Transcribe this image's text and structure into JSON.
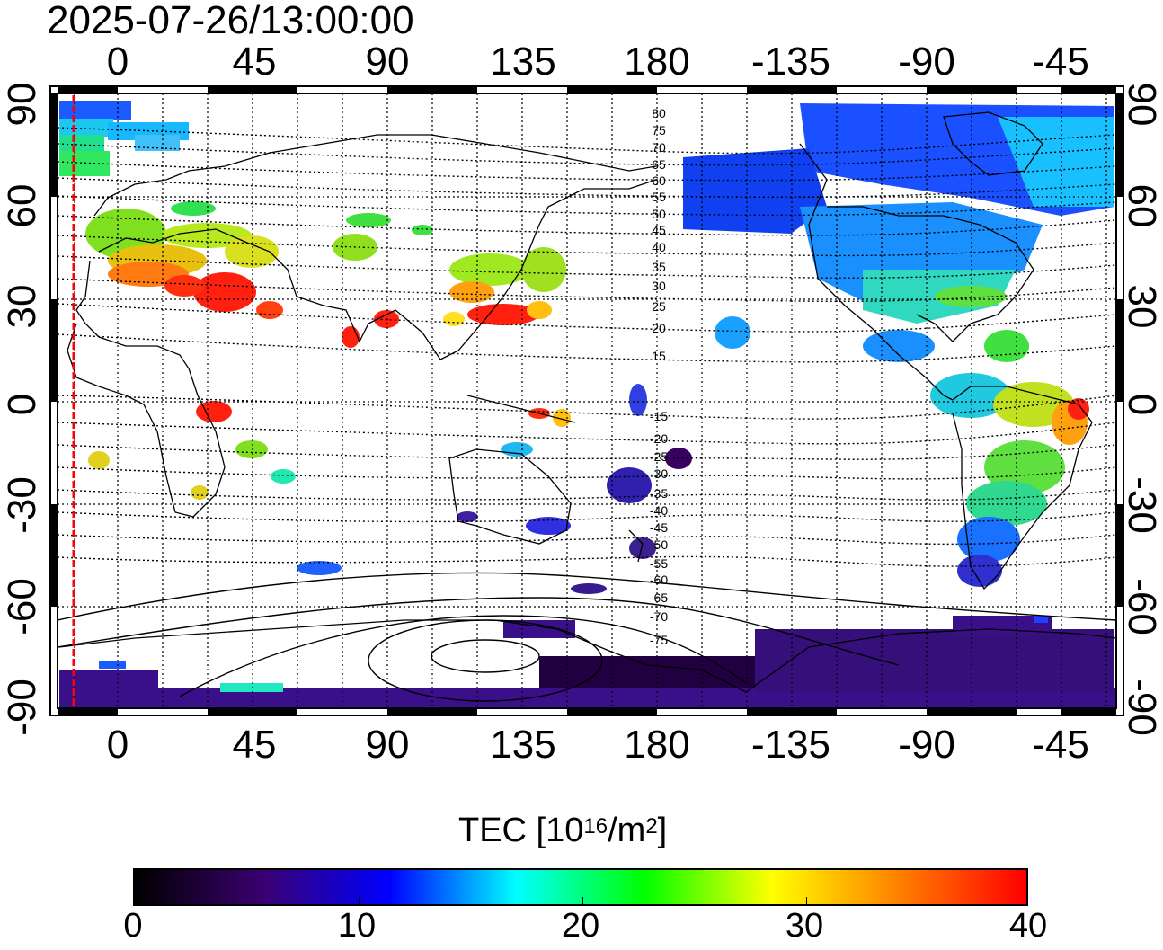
{
  "timestamp": "2025-07-26/13:00:00",
  "map": {
    "lon_ticks_top": [
      "0",
      "45",
      "90",
      "135",
      "180",
      "-135",
      "-90",
      "-45"
    ],
    "lon_ticks_bottom": [
      "0",
      "45",
      "90",
      "135",
      "180",
      "-135",
      "-90",
      "-45"
    ],
    "lat_ticks_left": [
      "90",
      "60",
      "30",
      "0",
      "-30",
      "-60",
      "-90"
    ],
    "lat_ticks_right": [
      "90",
      "60",
      "30",
      "0",
      "-30",
      "-60",
      "-90"
    ],
    "contour_labels_north": [
      "80",
      "75",
      "70",
      "65",
      "60",
      "55",
      "50",
      "45",
      "40",
      "35",
      "30",
      "25",
      "20",
      "15"
    ],
    "contour_labels_south": [
      "-15",
      "-20",
      "-25",
      "-30",
      "-35",
      "-40",
      "-45",
      "-50",
      "-55",
      "-60",
      "-65",
      "-70",
      "-75"
    ],
    "terminator_color": "#ff0000",
    "grid": "dotted"
  },
  "colorbar": {
    "title_main": "TEC  [10",
    "title_exp": "16",
    "title_unit": "/m",
    "title_unit_exp": "2",
    "title_close": "]",
    "ticks": [
      "0",
      "10",
      "20",
      "30",
      "40"
    ],
    "min": 0,
    "max": 40,
    "stops": [
      "#000000",
      "#3a006f",
      "#0000ff",
      "#00ffff",
      "#00ff00",
      "#ffff00",
      "#ff8000",
      "#ff0000"
    ]
  }
}
